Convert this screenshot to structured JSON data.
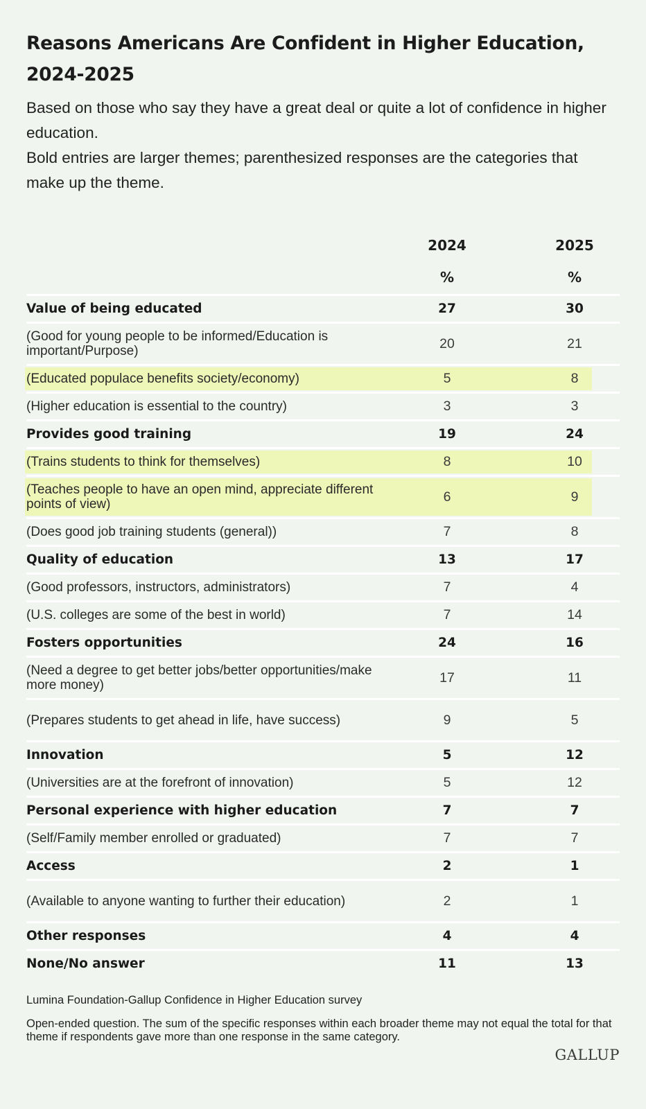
{
  "title": "Reasons Americans Are Confident in Higher Education, 2024-2025",
  "subtitle_lines": [
    "Based on those who say they have a great deal or quite a lot of confidence in higher education.",
    "Bold entries are larger themes; parenthesized responses are the categories that make up the theme."
  ],
  "columns": [
    {
      "year": "2024",
      "unit": "%"
    },
    {
      "year": "2025",
      "unit": "%"
    }
  ],
  "rows": [
    {
      "label": "Value of being educated",
      "v2024": "27",
      "v2025": "30",
      "theme": true
    },
    {
      "label": "(Good for young people to be informed/Education is important/Purpose)",
      "v2024": "20",
      "v2025": "21"
    },
    {
      "label": "(Educated populace benefits society/economy)",
      "v2024": "5",
      "v2025": "8",
      "highlight": true
    },
    {
      "label": "(Higher education is essential to the country)",
      "v2024": "3",
      "v2025": "3"
    },
    {
      "label": "Provides good training",
      "v2024": "19",
      "v2025": "24",
      "theme": true
    },
    {
      "label": "(Trains students to think for themselves)",
      "v2024": "8",
      "v2025": "10",
      "highlight": true
    },
    {
      "label": "(Teaches people to have an open mind, appreciate different points of view)",
      "v2024": "6",
      "v2025": "9",
      "highlight": true
    },
    {
      "label": "(Does good job training students (general))",
      "v2024": "7",
      "v2025": "8"
    },
    {
      "label": "Quality of education",
      "v2024": "13",
      "v2025": "17",
      "theme": true
    },
    {
      "label": "(Good professors, instructors, administrators)",
      "v2024": "7",
      "v2025": "4"
    },
    {
      "label": "(U.S. colleges are some of the best in world)",
      "v2024": "7",
      "v2025": "14"
    },
    {
      "label": "Fosters opportunities",
      "v2024": "24",
      "v2025": "16",
      "theme": true
    },
    {
      "label": "(Need a degree to get better jobs/better opportunities/make more money)",
      "v2024": "17",
      "v2025": "11"
    },
    {
      "label": "(Prepares students to get ahead in life, have success)",
      "v2024": "9",
      "v2025": "5"
    },
    {
      "label": "Innovation",
      "v2024": "5",
      "v2025": "12",
      "theme": true
    },
    {
      "label": "(Universities are at the forefront of innovation)",
      "v2024": "5",
      "v2025": "12"
    },
    {
      "label": "Personal experience with higher education",
      "v2024": "7",
      "v2025": "7",
      "theme": true
    },
    {
      "label": "(Self/Family member enrolled or graduated)",
      "v2024": "7",
      "v2025": "7"
    },
    {
      "label": "Access",
      "v2024": "2",
      "v2025": "1",
      "theme": true
    },
    {
      "label": "(Available to anyone wanting to further their education)",
      "v2024": "2",
      "v2025": "1"
    },
    {
      "label": "Other responses",
      "v2024": "4",
      "v2025": "4",
      "theme": true
    },
    {
      "label": "None/No answer",
      "v2024": "11",
      "v2025": "13",
      "theme": true
    }
  ],
  "source": "Lumina Foundation-Gallup Confidence in Higher Education survey",
  "note": "Open-ended question. The sum of the specific responses within each broader theme may not equal the total for that theme if respondents gave more than one response in the same category.",
  "logo": "GALLUP",
  "colors": {
    "background": "#f0f5ef",
    "highlight": "#eef6b8",
    "row_divider": "#ffffff"
  }
}
